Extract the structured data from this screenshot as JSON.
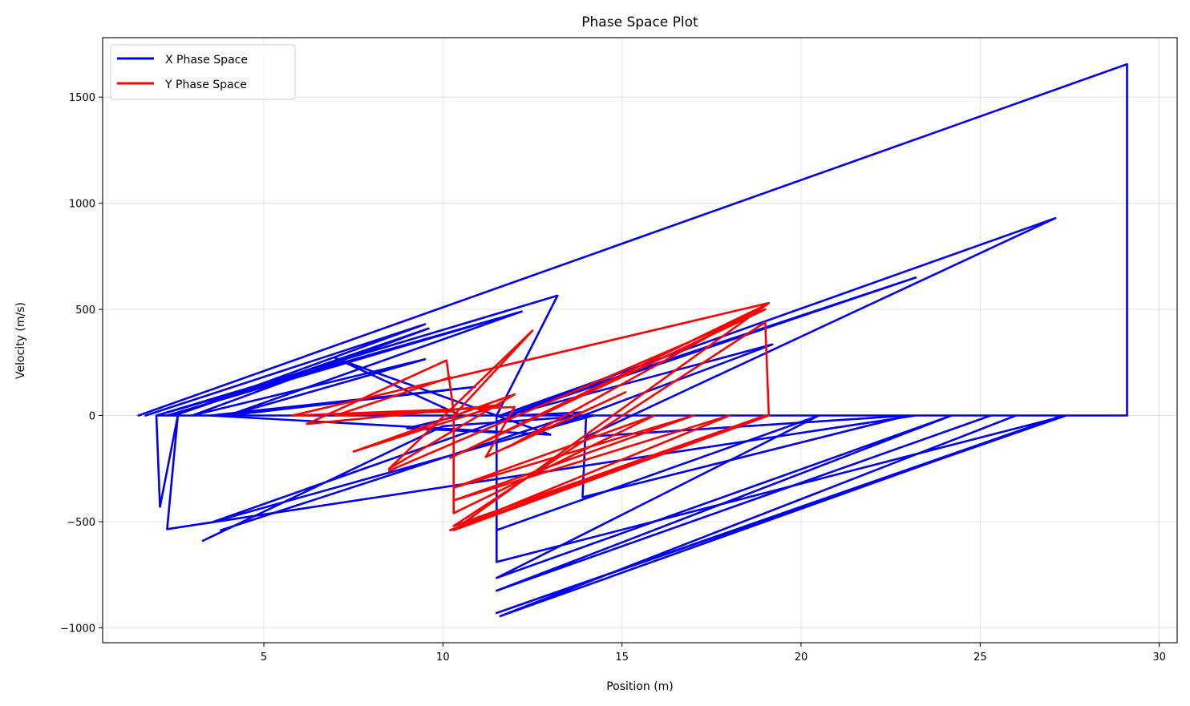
{
  "chart_data": {
    "type": "line",
    "title": "Phase Space Plot",
    "xlabel": "Position (m)",
    "ylabel": "Velocity (m/s)",
    "xlim": [
      0.5,
      30.5
    ],
    "ylim": [
      -1070,
      1780
    ],
    "xticks": [
      5,
      10,
      15,
      20,
      25,
      30
    ],
    "yticks": [
      -1000,
      -500,
      0,
      500,
      1000,
      1500
    ],
    "xtick_labels": [
      "5",
      "10",
      "15",
      "20",
      "25",
      "30"
    ],
    "ytick_labels": [
      "−1000",
      "−500",
      "0",
      "500",
      "1000",
      "1500"
    ],
    "grid": true,
    "legend_position": "top-left",
    "series": [
      {
        "name": "X Phase Space",
        "color": "#0000ee",
        "segments": [
          [
            [
              1.5,
              0
            ],
            [
              29.1,
              1655
            ],
            [
              29.1,
              0
            ],
            [
              2.0,
              0
            ],
            [
              2.1,
              -430
            ],
            [
              2.6,
              0
            ],
            [
              2.3,
              -535
            ],
            [
              23.2,
              0
            ],
            [
              4.0,
              0
            ],
            [
              12.2,
              490
            ],
            [
              2.3,
              0
            ],
            [
              11.8,
              470
            ],
            [
              2.0,
              0
            ],
            [
              13.2,
              565
            ],
            [
              11.5,
              0
            ],
            [
              11.5,
              -690
            ],
            [
              27.4,
              0
            ],
            [
              11.5,
              -930
            ],
            [
              27.3,
              0
            ],
            [
              11.6,
              -945
            ],
            [
              26.0,
              0
            ]
          ],
          [
            [
              1.7,
              0
            ],
            [
              9.5,
              430
            ],
            [
              2.5,
              0
            ],
            [
              9.6,
              410
            ],
            [
              3.0,
              0
            ],
            [
              9.5,
              265
            ],
            [
              4.0,
              0
            ],
            [
              10.9,
              135
            ],
            [
              3.5,
              0
            ],
            [
              13.0,
              -90
            ],
            [
              7.0,
              270
            ],
            [
              10.5,
              0
            ],
            [
              9.0,
              -60
            ],
            [
              11.5,
              -80
            ]
          ],
          [
            [
              3.3,
              -590
            ],
            [
              10.0,
              -50
            ],
            [
              14.2,
              0
            ],
            [
              3.6,
              -500
            ],
            [
              12.0,
              0
            ],
            [
              13.9,
              15
            ],
            [
              3.8,
              -540
            ]
          ],
          [
            [
              11.5,
              -540
            ],
            [
              20.5,
              0
            ],
            [
              11.5,
              -765
            ],
            [
              24.2,
              0
            ],
            [
              11.5,
              -825
            ],
            [
              25.3,
              0
            ]
          ],
          [
            [
              14.0,
              0
            ],
            [
              13.9,
              -385
            ],
            [
              23.0,
              0
            ],
            [
              14.0,
              -100
            ],
            [
              27.1,
              930
            ],
            [
              11.6,
              0
            ],
            [
              23.2,
              650
            ],
            [
              11.8,
              0
            ],
            [
              19.2,
              335
            ],
            [
              12.5,
              -90
            ]
          ]
        ]
      },
      {
        "name": "Y Phase Space",
        "color": "#ff0000",
        "segments": [
          [
            [
              5.8,
              0
            ],
            [
              19.1,
              530
            ],
            [
              10.3,
              -540
            ],
            [
              19.1,
              0
            ],
            [
              19.0,
              440
            ],
            [
              10.3,
              -520
            ],
            [
              19.0,
              0
            ],
            [
              10.2,
              -540
            ],
            [
              18.0,
              0
            ],
            [
              10.3,
              -400
            ],
            [
              17.0,
              0
            ],
            [
              10.3,
              -340
            ],
            [
              15.9,
              0
            ],
            [
              10.3,
              -460
            ],
            [
              10.3,
              0
            ],
            [
              12.5,
              400
            ],
            [
              8.5,
              -250
            ],
            [
              12.0,
              100
            ],
            [
              7.5,
              -170
            ],
            [
              11.6,
              50
            ],
            [
              6.2,
              -40
            ],
            [
              10.1,
              260
            ],
            [
              10.3,
              20
            ],
            [
              7.0,
              0
            ],
            [
              10.2,
              180
            ]
          ],
          [
            [
              8.5,
              -260
            ],
            [
              19.0,
              500
            ],
            [
              10.2,
              -200
            ],
            [
              19.0,
              520
            ],
            [
              11.8,
              -150
            ],
            [
              15.1,
              110
            ],
            [
              11.2,
              -195
            ],
            [
              12.0,
              40
            ],
            [
              5.8,
              0
            ]
          ]
        ]
      }
    ]
  }
}
